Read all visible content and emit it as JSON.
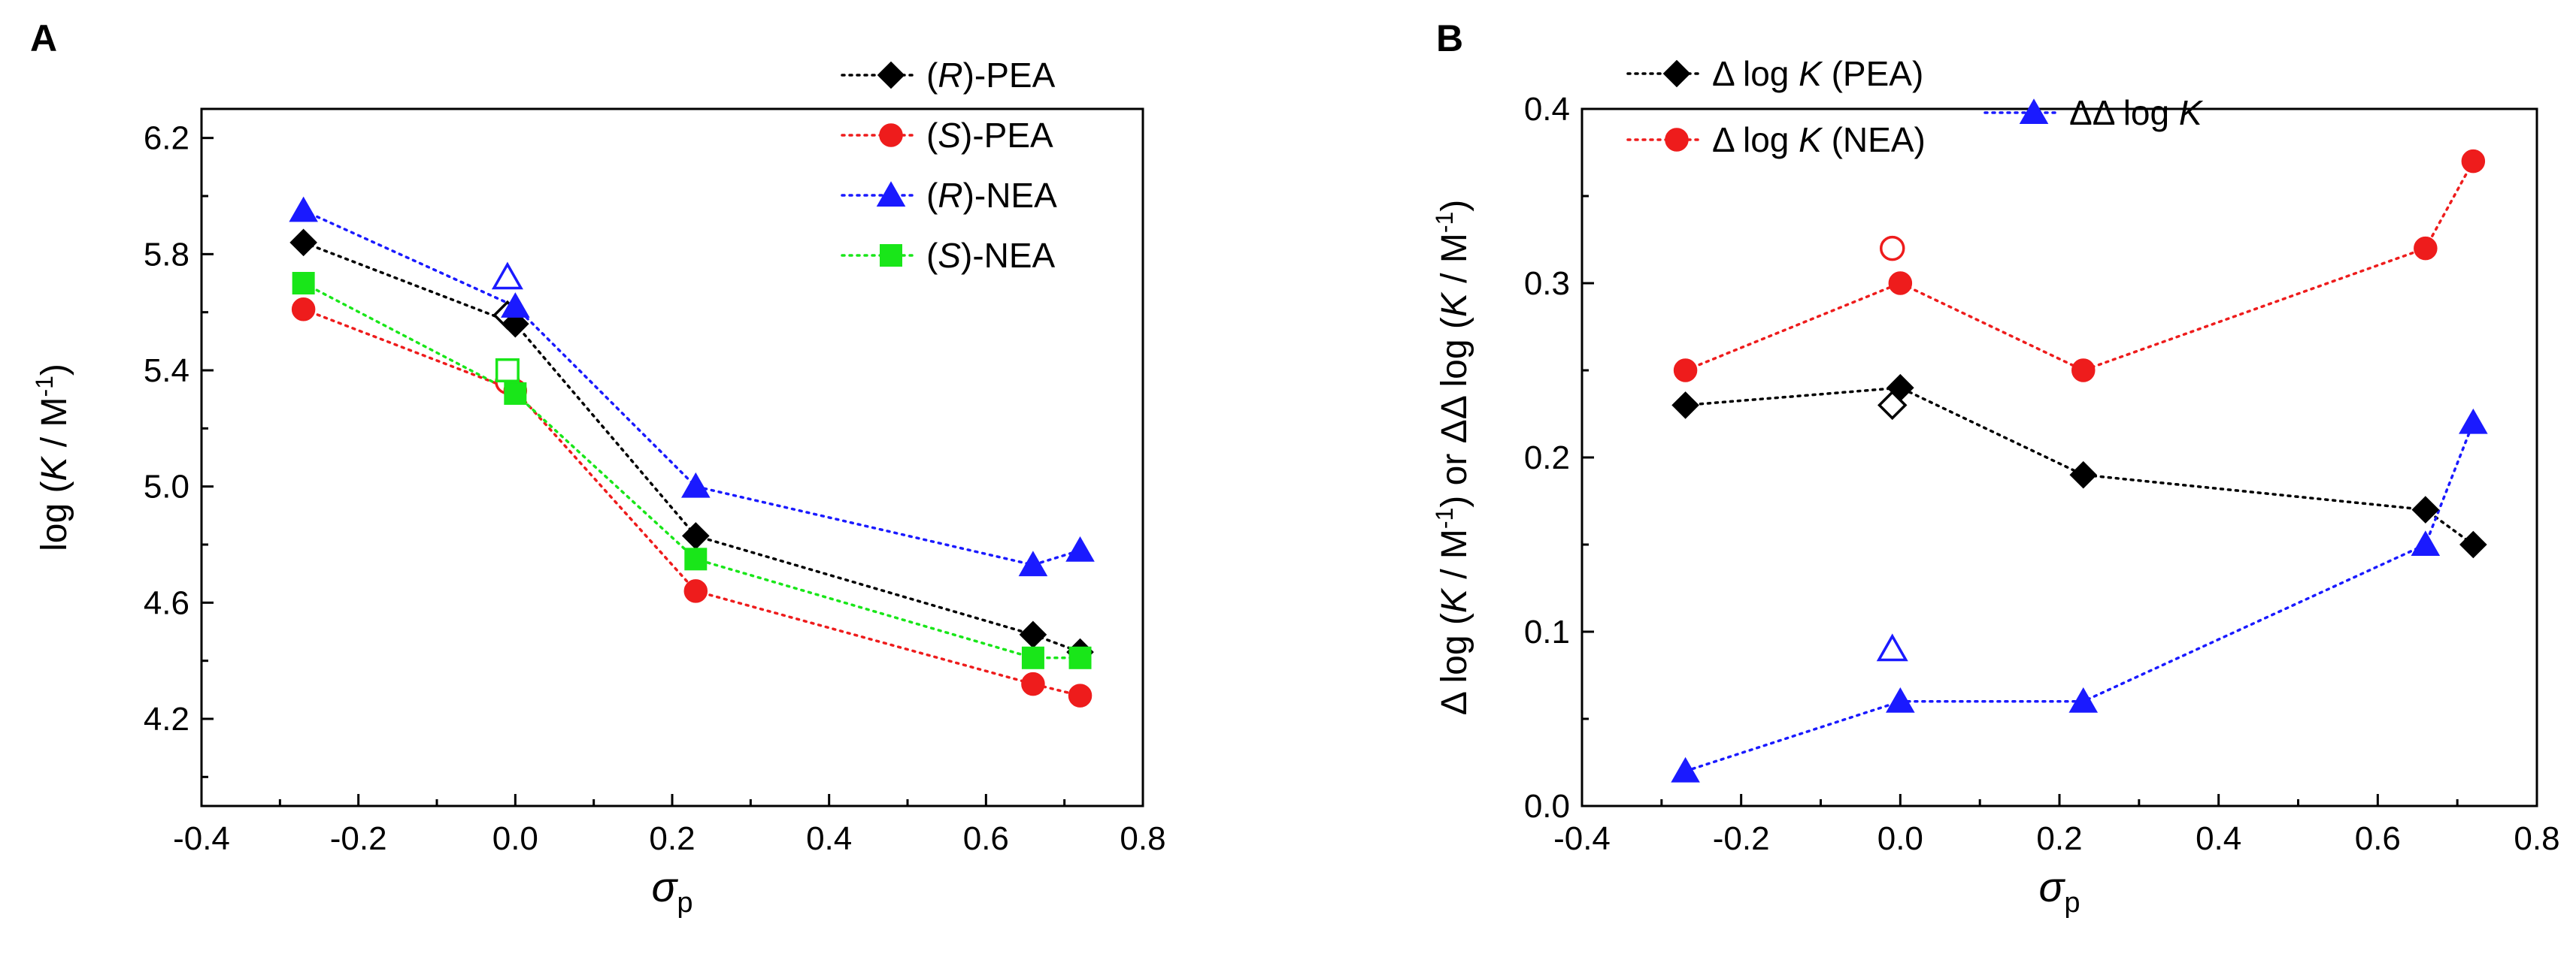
{
  "chart_data": [
    {
      "panel": "A",
      "type": "scatter",
      "xlabel": "σp",
      "ylabel": "log (K / M⁻¹)",
      "xlim": [
        -0.4,
        0.8
      ],
      "ylim": [
        3.9,
        6.3
      ],
      "xticks": [
        "-0.4",
        "-0.2",
        "0.0",
        "0.2",
        "0.4",
        "0.6",
        "0.8"
      ],
      "yticks": [
        "4.2",
        "4.6",
        "5.0",
        "5.4",
        "5.8",
        "6.2"
      ],
      "legend_position": "top-right",
      "series": [
        {
          "name": "(R)-PEA",
          "prefix": "(",
          "italic": "R",
          "suffix": ")-PEA",
          "color": "#000000",
          "marker": "diamond",
          "x": [
            -0.27,
            0.0,
            0.23,
            0.66,
            0.72
          ],
          "y": [
            5.84,
            5.56,
            4.83,
            4.49,
            4.43
          ],
          "open_x": [
            -0.01
          ],
          "open_y": [
            5.59
          ]
        },
        {
          "name": "(S)-PEA",
          "prefix": "(",
          "italic": "S",
          "suffix": ")-PEA",
          "color": "#ee1c1c",
          "marker": "circle",
          "x": [
            -0.27,
            0.0,
            0.23,
            0.66,
            0.72
          ],
          "y": [
            5.61,
            5.33,
            4.64,
            4.32,
            4.28
          ],
          "open_x": [
            -0.01
          ],
          "open_y": [
            5.36
          ]
        },
        {
          "name": "(R)-NEA",
          "prefix": "(",
          "italic": "R",
          "suffix": ")-NEA",
          "color": "#1a1aff",
          "marker": "triangle",
          "x": [
            -0.27,
            0.0,
            0.23,
            0.66,
            0.72
          ],
          "y": [
            5.95,
            5.62,
            5.0,
            4.73,
            4.78
          ],
          "open_x": [
            -0.01
          ],
          "open_y": [
            5.72
          ]
        },
        {
          "name": "(S)-NEA",
          "prefix": "(",
          "italic": "S",
          "suffix": ")-NEA",
          "color": "#19e619",
          "marker": "square",
          "x": [
            -0.27,
            0.0,
            0.23,
            0.66,
            0.72
          ],
          "y": [
            5.7,
            5.32,
            4.75,
            4.41,
            4.41
          ],
          "open_x": [
            -0.01
          ],
          "open_y": [
            5.4
          ]
        }
      ]
    },
    {
      "panel": "B",
      "type": "scatter",
      "xlabel": "σp",
      "ylabel": "Δ log (K / M⁻¹) or ΔΔ log (K / M⁻¹)",
      "xlim": [
        -0.4,
        0.8
      ],
      "ylim": [
        0.0,
        0.4
      ],
      "xticks": [
        "-0.4",
        "-0.2",
        "0.0",
        "0.2",
        "0.4",
        "0.6",
        "0.8"
      ],
      "yticks": [
        "0.0",
        "0.1",
        "0.2",
        "0.3",
        "0.4"
      ],
      "legend_position": "top",
      "series": [
        {
          "name": "Δ log K (PEA)",
          "prefix": "Δ log ",
          "italic": "K",
          "suffix": " (PEA)",
          "color": "#000000",
          "marker": "diamond",
          "x": [
            -0.27,
            0.0,
            0.23,
            0.66,
            0.72
          ],
          "y": [
            0.23,
            0.24,
            0.19,
            0.17,
            0.15
          ],
          "open_x": [
            -0.01
          ],
          "open_y": [
            0.23
          ]
        },
        {
          "name": "Δ log K (NEA)",
          "prefix": "Δ log ",
          "italic": "K",
          "suffix": " (NEA)",
          "color": "#ee1c1c",
          "marker": "circle",
          "x": [
            -0.27,
            0.0,
            0.23,
            0.66,
            0.72
          ],
          "y": [
            0.25,
            0.3,
            0.25,
            0.32,
            0.37
          ],
          "open_x": [
            -0.01
          ],
          "open_y": [
            0.32
          ]
        },
        {
          "name": "ΔΔ log K",
          "prefix": "ΔΔ log ",
          "italic": "K",
          "suffix": "",
          "color": "#1a1aff",
          "marker": "triangle",
          "x": [
            -0.27,
            0.0,
            0.23,
            0.66,
            0.72
          ],
          "y": [
            0.02,
            0.06,
            0.06,
            0.15,
            0.22
          ],
          "open_x": [
            -0.01
          ],
          "open_y": [
            0.09
          ]
        }
      ]
    }
  ]
}
